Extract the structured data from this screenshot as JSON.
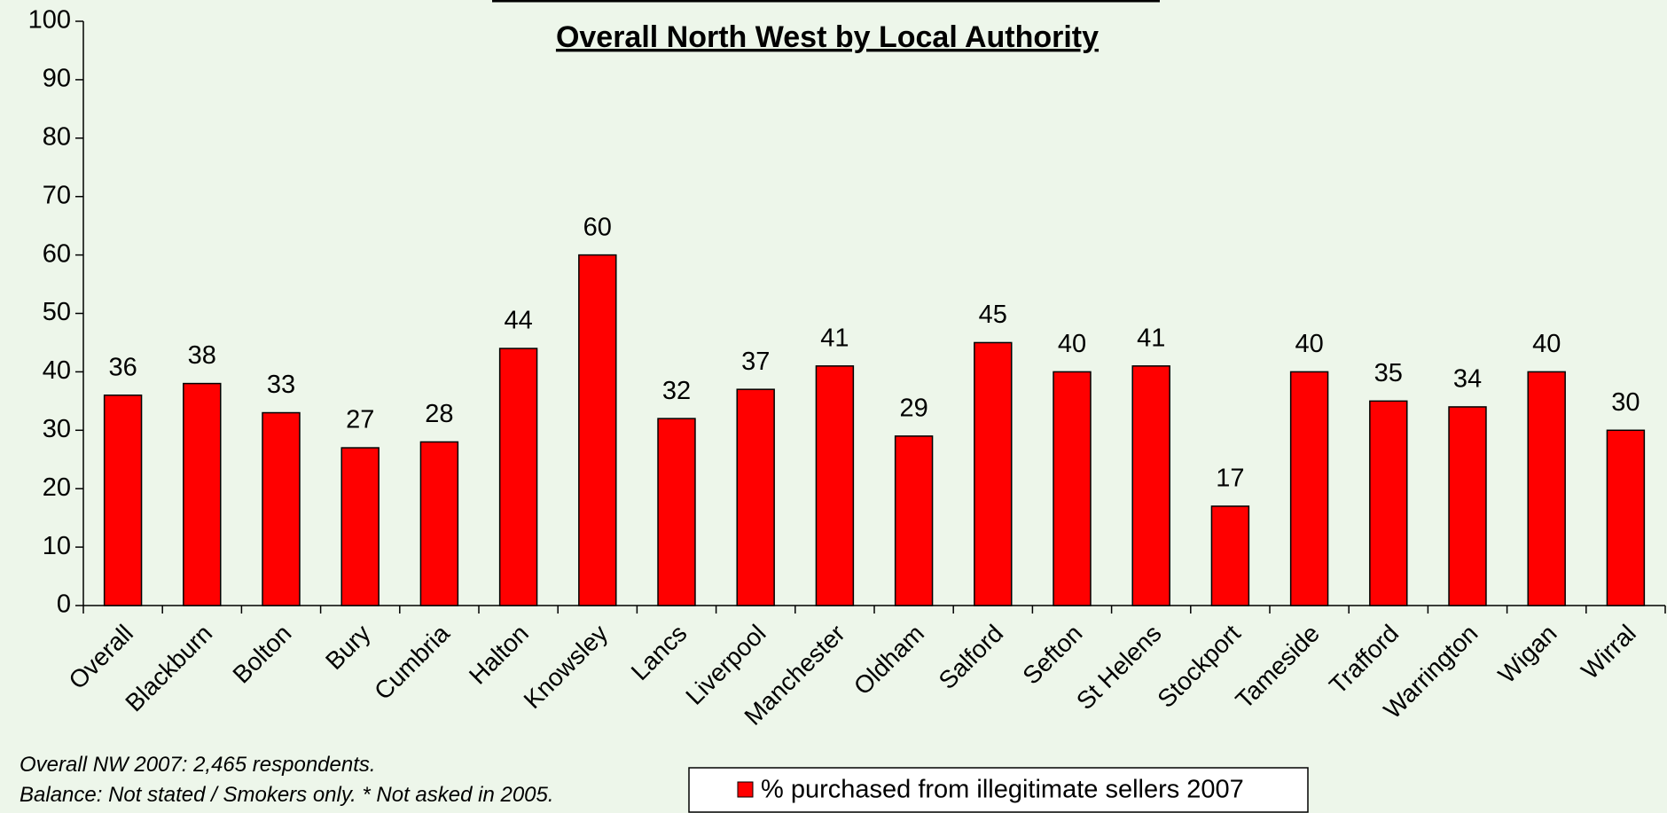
{
  "chart_data": {
    "type": "bar",
    "title": "Overall North West by Local Authority",
    "categories": [
      "Overall",
      "Blackburn",
      "Bolton",
      "Bury",
      "Cumbria",
      "Halton",
      "Knowsley",
      "Lancs",
      "Liverpool",
      "Manchester",
      "Oldham",
      "Salford",
      "Sefton",
      "St Helens",
      "Stockport",
      "Tameside",
      "Trafford",
      "Warrington",
      "Wigan",
      "Wirral"
    ],
    "series": [
      {
        "name": "% purchased from illegitimate sellers 2007",
        "color": "#ff0000",
        "values": [
          36,
          38,
          33,
          27,
          28,
          44,
          60,
          32,
          37,
          41,
          29,
          45,
          40,
          41,
          17,
          40,
          35,
          34,
          40,
          30
        ]
      }
    ],
    "ylim": [
      0,
      100
    ],
    "yticks": [
      0,
      10,
      20,
      30,
      40,
      50,
      60,
      70,
      80,
      90,
      100
    ],
    "annotations": [
      "Overall NW 2007: 2,465 respondents.",
      "Balance: Not stated / Smokers only.   * Not asked in 2005."
    ],
    "legend": "bottom"
  }
}
